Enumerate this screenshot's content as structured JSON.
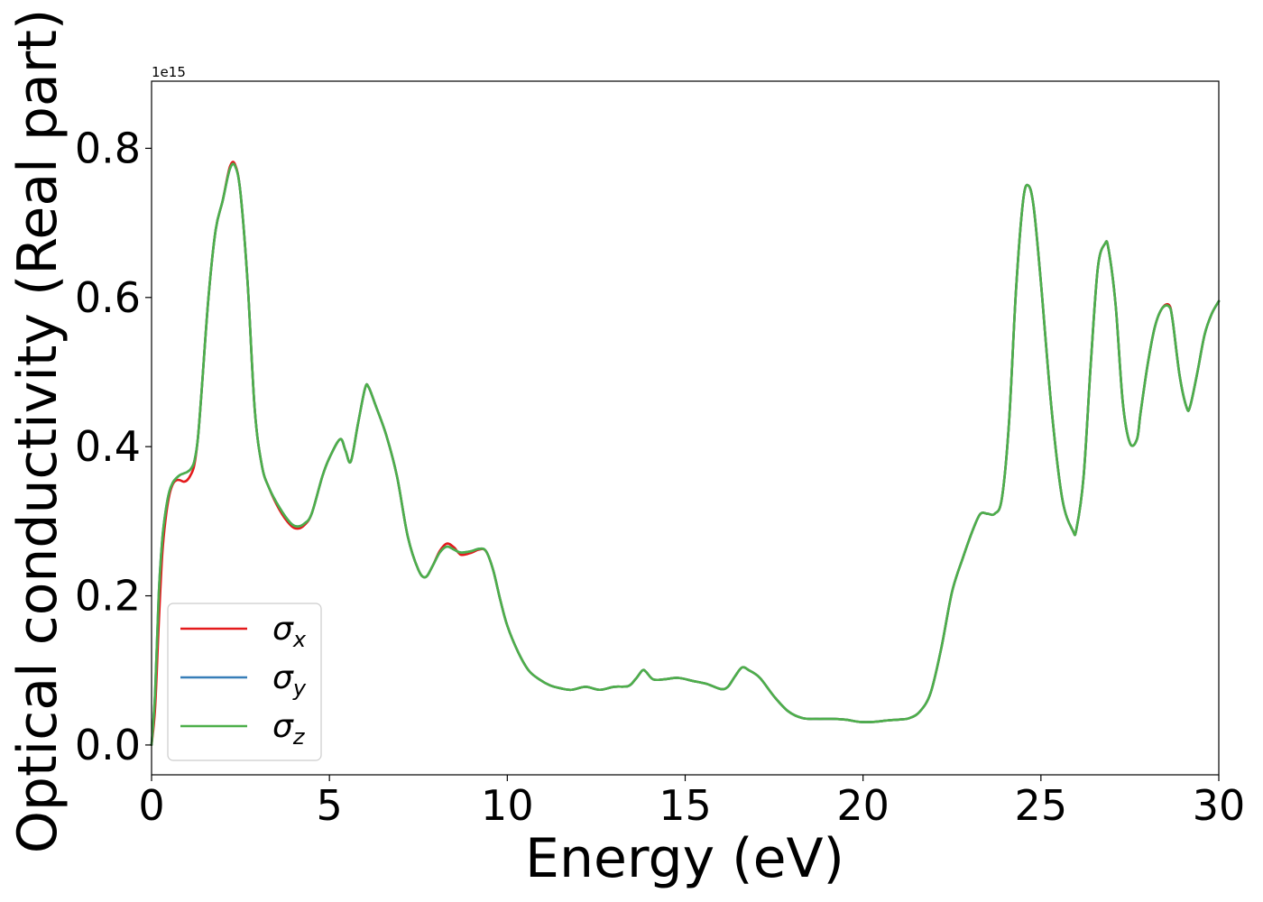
{
  "chart_data": {
    "type": "line",
    "title": "",
    "xlabel": "Energy (eV)",
    "ylabel": "Optical conductivity (Real part)",
    "y_offset_text": "1e15",
    "xlim": [
      0,
      30
    ],
    "ylim": [
      -0.04,
      0.89
    ],
    "xticks": [
      0,
      5,
      10,
      15,
      20,
      25,
      30
    ],
    "xtick_labels": [
      "0",
      "5",
      "10",
      "15",
      "20",
      "25",
      "30"
    ],
    "yticks": [
      0.0,
      0.2,
      0.4,
      0.6,
      0.8
    ],
    "ytick_labels": [
      "0.0",
      "0.2",
      "0.4",
      "0.6",
      "0.8"
    ],
    "grid": false,
    "legend_position": "lower-left",
    "x": [
      0.0,
      0.1,
      0.2,
      0.3,
      0.4,
      0.5,
      0.6,
      0.7,
      0.8,
      0.9,
      1.0,
      1.1,
      1.2,
      1.3,
      1.4,
      1.6,
      1.8,
      2.0,
      2.2,
      2.35,
      2.5,
      2.7,
      2.9,
      3.1,
      3.3,
      3.6,
      3.9,
      4.1,
      4.3,
      4.5,
      4.8,
      5.0,
      5.3,
      5.45,
      5.6,
      5.8,
      6.0,
      6.1,
      6.3,
      6.6,
      6.9,
      7.2,
      7.5,
      7.7,
      7.9,
      8.1,
      8.3,
      8.5,
      8.7,
      9.0,
      9.2,
      9.4,
      9.6,
      9.8,
      10.0,
      10.3,
      10.6,
      10.9,
      11.2,
      11.5,
      11.8,
      12.2,
      12.6,
      13.0,
      13.4,
      13.6,
      13.8,
      13.9,
      14.1,
      14.4,
      14.8,
      15.2,
      15.6,
      16.0,
      16.2,
      16.4,
      16.6,
      16.8,
      17.1,
      17.5,
      17.9,
      18.3,
      18.7,
      19.1,
      19.5,
      19.9,
      20.3,
      20.7,
      21.0,
      21.3,
      21.6,
      21.9,
      22.2,
      22.5,
      22.8,
      23.1,
      23.3,
      23.5,
      23.7,
      23.9,
      24.1,
      24.3,
      24.5,
      24.65,
      24.8,
      25.0,
      25.3,
      25.6,
      25.9,
      26.0,
      26.2,
      26.4,
      26.6,
      26.8,
      26.9,
      27.1,
      27.3,
      27.5,
      27.7,
      27.8,
      28.0,
      28.2,
      28.4,
      28.6,
      28.7,
      28.9,
      29.1,
      29.2,
      29.4,
      29.6,
      29.8,
      30.0
    ],
    "series": [
      {
        "name": "σx",
        "color": "#e41a1c",
        "values": [
          0.0,
          0.05,
          0.16,
          0.255,
          0.305,
          0.335,
          0.35,
          0.355,
          0.355,
          0.353,
          0.355,
          0.362,
          0.375,
          0.41,
          0.47,
          0.6,
          0.69,
          0.73,
          0.775,
          0.778,
          0.74,
          0.62,
          0.45,
          0.375,
          0.345,
          0.315,
          0.295,
          0.29,
          0.295,
          0.31,
          0.36,
          0.385,
          0.41,
          0.395,
          0.38,
          0.43,
          0.478,
          0.48,
          0.455,
          0.415,
          0.36,
          0.28,
          0.235,
          0.225,
          0.24,
          0.26,
          0.27,
          0.265,
          0.255,
          0.258,
          0.262,
          0.26,
          0.235,
          0.195,
          0.16,
          0.125,
          0.1,
          0.088,
          0.08,
          0.076,
          0.074,
          0.078,
          0.074,
          0.078,
          0.079,
          0.088,
          0.1,
          0.098,
          0.088,
          0.088,
          0.09,
          0.086,
          0.082,
          0.075,
          0.078,
          0.092,
          0.104,
          0.1,
          0.09,
          0.065,
          0.045,
          0.036,
          0.035,
          0.035,
          0.034,
          0.031,
          0.031,
          0.033,
          0.034,
          0.036,
          0.045,
          0.07,
          0.13,
          0.205,
          0.25,
          0.29,
          0.31,
          0.31,
          0.31,
          0.33,
          0.43,
          0.61,
          0.73,
          0.75,
          0.72,
          0.62,
          0.45,
          0.33,
          0.287,
          0.29,
          0.36,
          0.51,
          0.64,
          0.672,
          0.665,
          0.59,
          0.46,
          0.405,
          0.41,
          0.445,
          0.51,
          0.56,
          0.585,
          0.59,
          0.57,
          0.495,
          0.452,
          0.455,
          0.5,
          0.55,
          0.578,
          0.595
        ]
      },
      {
        "name": "σy",
        "color": "#377eb8",
        "values": [
          0.0,
          0.07,
          0.2,
          0.275,
          0.315,
          0.34,
          0.352,
          0.358,
          0.362,
          0.364,
          0.366,
          0.37,
          0.38,
          0.41,
          0.47,
          0.6,
          0.69,
          0.73,
          0.772,
          0.776,
          0.74,
          0.62,
          0.45,
          0.375,
          0.345,
          0.318,
          0.298,
          0.293,
          0.297,
          0.31,
          0.36,
          0.385,
          0.41,
          0.395,
          0.38,
          0.43,
          0.478,
          0.48,
          0.455,
          0.415,
          0.36,
          0.28,
          0.235,
          0.225,
          0.24,
          0.258,
          0.266,
          0.262,
          0.258,
          0.26,
          0.263,
          0.26,
          0.235,
          0.195,
          0.16,
          0.125,
          0.1,
          0.088,
          0.08,
          0.076,
          0.074,
          0.078,
          0.074,
          0.078,
          0.079,
          0.088,
          0.1,
          0.098,
          0.088,
          0.088,
          0.09,
          0.086,
          0.082,
          0.075,
          0.078,
          0.092,
          0.104,
          0.1,
          0.09,
          0.065,
          0.045,
          0.036,
          0.035,
          0.035,
          0.034,
          0.031,
          0.031,
          0.033,
          0.034,
          0.036,
          0.045,
          0.07,
          0.13,
          0.205,
          0.25,
          0.29,
          0.31,
          0.31,
          0.31,
          0.33,
          0.43,
          0.61,
          0.73,
          0.75,
          0.72,
          0.62,
          0.45,
          0.33,
          0.287,
          0.29,
          0.36,
          0.51,
          0.64,
          0.672,
          0.665,
          0.59,
          0.46,
          0.405,
          0.41,
          0.445,
          0.51,
          0.56,
          0.585,
          0.588,
          0.57,
          0.495,
          0.452,
          0.455,
          0.5,
          0.55,
          0.578,
          0.595
        ]
      },
      {
        "name": "σz",
        "color": "#4daf4a",
        "values": [
          0.0,
          0.07,
          0.2,
          0.275,
          0.315,
          0.34,
          0.352,
          0.358,
          0.362,
          0.364,
          0.366,
          0.37,
          0.38,
          0.41,
          0.47,
          0.6,
          0.69,
          0.73,
          0.772,
          0.776,
          0.74,
          0.62,
          0.45,
          0.375,
          0.345,
          0.318,
          0.298,
          0.293,
          0.297,
          0.31,
          0.36,
          0.385,
          0.41,
          0.395,
          0.38,
          0.43,
          0.478,
          0.48,
          0.455,
          0.415,
          0.36,
          0.28,
          0.235,
          0.225,
          0.24,
          0.258,
          0.266,
          0.262,
          0.258,
          0.26,
          0.263,
          0.26,
          0.235,
          0.195,
          0.16,
          0.125,
          0.1,
          0.088,
          0.08,
          0.076,
          0.074,
          0.078,
          0.074,
          0.078,
          0.079,
          0.088,
          0.1,
          0.098,
          0.088,
          0.088,
          0.09,
          0.086,
          0.082,
          0.075,
          0.078,
          0.092,
          0.104,
          0.1,
          0.09,
          0.065,
          0.045,
          0.036,
          0.035,
          0.035,
          0.034,
          0.031,
          0.031,
          0.033,
          0.034,
          0.036,
          0.045,
          0.07,
          0.13,
          0.205,
          0.25,
          0.29,
          0.31,
          0.31,
          0.31,
          0.33,
          0.43,
          0.61,
          0.73,
          0.75,
          0.72,
          0.62,
          0.45,
          0.33,
          0.287,
          0.29,
          0.36,
          0.51,
          0.64,
          0.672,
          0.665,
          0.59,
          0.46,
          0.405,
          0.41,
          0.445,
          0.51,
          0.56,
          0.585,
          0.588,
          0.57,
          0.495,
          0.452,
          0.455,
          0.5,
          0.55,
          0.578,
          0.595
        ]
      }
    ],
    "legend": [
      {
        "symbol": "σ",
        "sub": "x",
        "color": "#e41a1c"
      },
      {
        "symbol": "σ",
        "sub": "y",
        "color": "#377eb8"
      },
      {
        "symbol": "σ",
        "sub": "z",
        "color": "#4daf4a"
      }
    ]
  }
}
